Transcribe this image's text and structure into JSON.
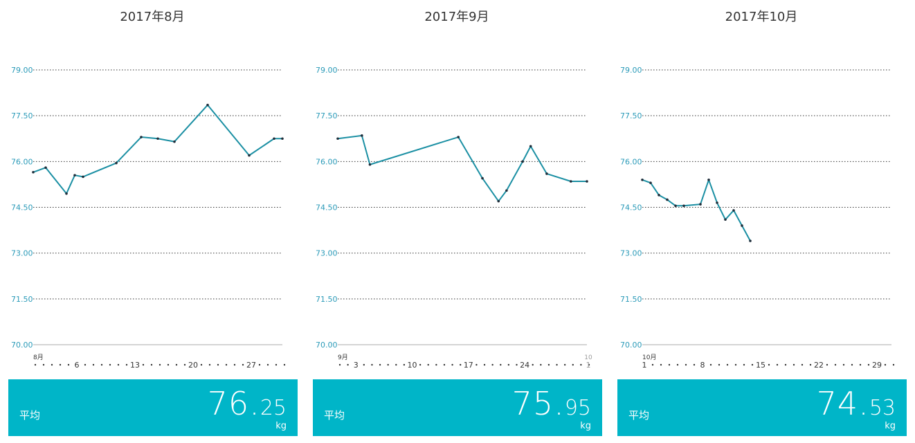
{
  "colors": {
    "accent": "#1a8fa3",
    "panel": "#00b5c8",
    "axis_text": "#2a9ab8",
    "tick_text": "#333333"
  },
  "y_ticks": [
    "79.00",
    "77.50",
    "76.00",
    "74.50",
    "73.00",
    "71.50",
    "70.00"
  ],
  "panels": [
    {
      "title": "2017年8月",
      "month_label": "8月",
      "x_ticks": [
        {
          "day": 6,
          "label": "6"
        },
        {
          "day": 13,
          "label": "13"
        },
        {
          "day": 20,
          "label": "20"
        },
        {
          "day": 27,
          "label": "27"
        }
      ],
      "avg_label": "平均",
      "avg_int": "76.",
      "avg_dec": "25",
      "unit": "kg"
    },
    {
      "title": "2017年9月",
      "month_label": "9月",
      "x_ticks": [
        {
          "day": 3,
          "label": "3"
        },
        {
          "day": 10,
          "label": "10"
        },
        {
          "day": 17,
          "label": "17"
        },
        {
          "day": 24,
          "label": "24"
        }
      ],
      "next_month_label": "10",
      "next_month_day": "1",
      "avg_label": "平均",
      "avg_int": "75.",
      "avg_dec": "95",
      "unit": "kg"
    },
    {
      "title": "2017年10月",
      "month_label": "10月",
      "x_ticks": [
        {
          "day": 1,
          "label": "1"
        },
        {
          "day": 8,
          "label": "8"
        },
        {
          "day": 15,
          "label": "15"
        },
        {
          "day": 22,
          "label": "22"
        },
        {
          "day": 29,
          "label": "29"
        }
      ],
      "avg_label": "平均",
      "avg_int": "74.",
      "avg_dec": "53",
      "unit": "kg"
    }
  ],
  "chart_data": [
    {
      "type": "line",
      "title": "2017年8月",
      "ylim": [
        70.0,
        79.0
      ],
      "xlim": [
        1,
        31
      ],
      "grid": true,
      "series": [
        {
          "x": [
            1,
            2.5,
            5,
            6,
            7,
            11,
            14,
            16,
            18,
            22,
            27,
            30,
            31
          ],
          "y": [
            75.65,
            75.8,
            74.95,
            75.55,
            75.5,
            75.95,
            76.8,
            76.75,
            76.65,
            77.85,
            76.2,
            76.75,
            76.75
          ]
        }
      ]
    },
    {
      "type": "line",
      "title": "2017年9月",
      "ylim": [
        70.0,
        79.0
      ],
      "xlim": [
        1,
        32
      ],
      "grid": true,
      "series": [
        {
          "x": [
            1,
            4,
            5,
            16,
            19,
            21,
            22,
            24,
            25,
            27,
            30,
            32
          ],
          "y": [
            76.75,
            76.85,
            75.9,
            76.8,
            75.45,
            74.7,
            75.05,
            76.0,
            76.5,
            75.6,
            75.35,
            75.35
          ]
        }
      ]
    },
    {
      "type": "line",
      "title": "2017年10月",
      "ylim": [
        70.0,
        79.0
      ],
      "xlim": [
        1,
        31
      ],
      "grid": true,
      "series": [
        {
          "x": [
            1,
            2,
            3,
            4,
            5,
            6,
            8,
            9,
            10,
            11,
            12,
            13,
            14
          ],
          "y": [
            75.4,
            75.3,
            74.9,
            74.75,
            74.55,
            74.55,
            74.6,
            75.4,
            74.65,
            74.1,
            74.4,
            73.9,
            73.4
          ]
        }
      ]
    }
  ]
}
